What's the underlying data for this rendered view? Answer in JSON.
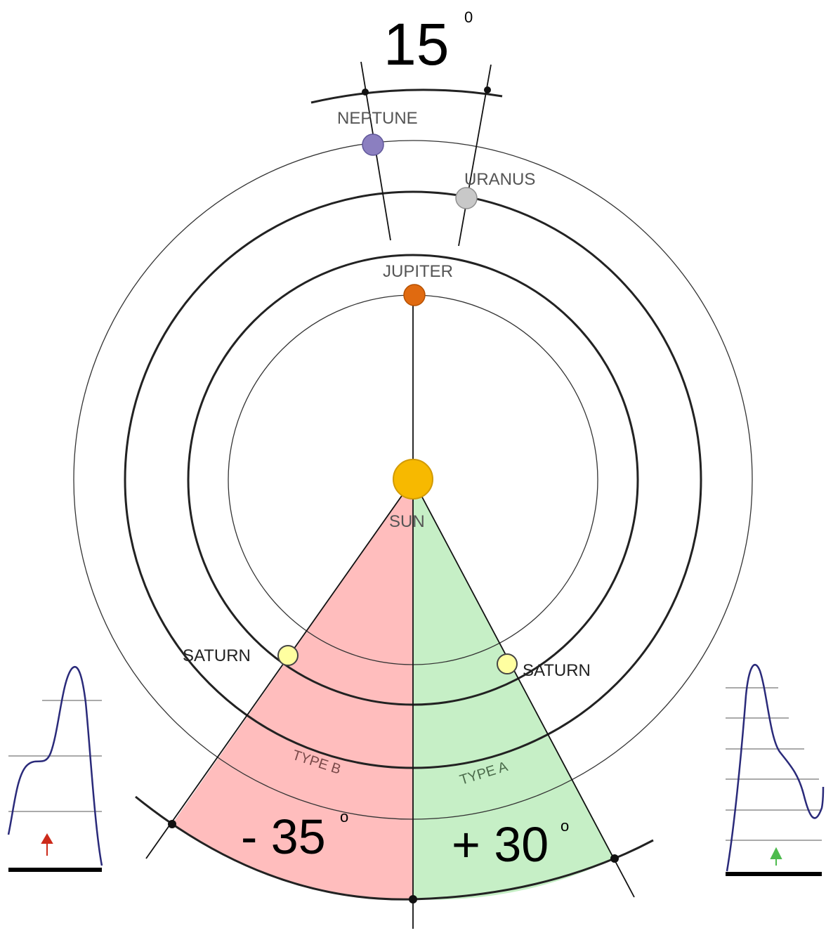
{
  "diagram": {
    "top_angle": {
      "value": "15",
      "unit": "0"
    },
    "labels": {
      "neptune": "NEPTUNE",
      "uranus": "URANUS",
      "jupiter": "JUPITER",
      "sun": "SUN",
      "saturn_left": "SATURN",
      "saturn_right": "SATURN",
      "type_b": "TYPE B",
      "type_a": "TYPE A"
    },
    "left_angle": {
      "value": "- 35",
      "unit": "o"
    },
    "right_angle": {
      "value": "+ 30",
      "unit": "o"
    }
  },
  "colors": {
    "sun": "#f7b900",
    "jupiter": "#e06a10",
    "neptune": "#8b7fc0",
    "uranus": "#c8c8c8",
    "saturn": "#ffffa0",
    "sector_left": "#ffbdbd",
    "sector_right": "#c6efc6",
    "curve": "#2a2a7a",
    "arrow_left": "#cc2a1a",
    "arrow_right": "#4dbb4d"
  }
}
